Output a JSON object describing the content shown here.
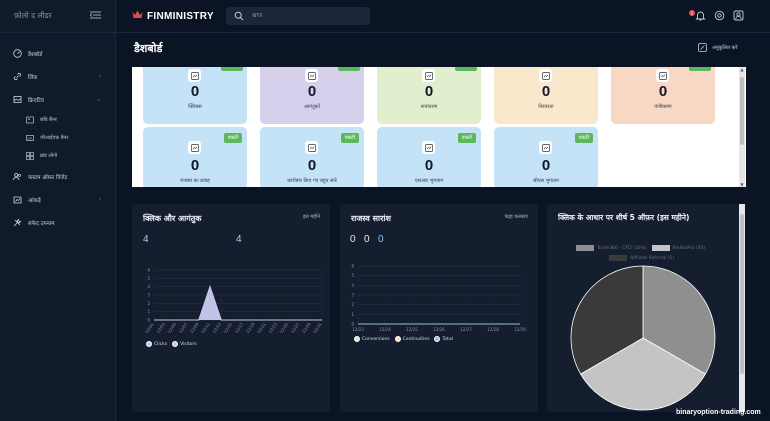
{
  "sidebar": {
    "title": "फ़ोलो द लीडर",
    "items": [
      {
        "label": "डैशबोर्ड",
        "icon": "dashboard-icon"
      },
      {
        "label": "लिंक",
        "icon": "link-icon",
        "chevron": "›"
      },
      {
        "label": "क्रिएटिव",
        "icon": "creative-icon",
        "chevron": "⌄"
      },
      {
        "label": "कस्टम ऑफ़र विजेट",
        "icon": "users-icon"
      },
      {
        "label": "आंकड़े",
        "icon": "stats-icon",
        "chevron": "›"
      },
      {
        "label": "सफेद उपनाम",
        "icon": "tools-icon"
      }
    ],
    "sub_items": [
      {
        "label": "छवि बैनर"
      },
      {
        "label": "जीआईएफ़ बैनर"
      },
      {
        "label": "ब्रांड लोगो"
      }
    ]
  },
  "topbar": {
    "brand": "FINMINISTRY",
    "search_placeholder": "खोज",
    "notification_count": "1"
  },
  "page": {
    "title": "डैशबोर्ड",
    "customize_label": "अनुकूलित करें"
  },
  "stats": [
    {
      "value": "0",
      "label": "क्लिक्स",
      "color": "#c5e3f7",
      "badge": ""
    },
    {
      "value": "0",
      "label": "आगंतुकों",
      "color": "#d7d0ec",
      "badge": ""
    },
    {
      "value": "0",
      "label": "रूपांतरण",
      "color": "#e2efcf",
      "badge": ""
    },
    {
      "value": "0",
      "label": "निरंतरता",
      "color": "#f9e8cb",
      "badge": ""
    },
    {
      "value": "0",
      "label": "पंजीकरण",
      "color": "#f8d7c4",
      "badge": ""
    },
    {
      "value": "0",
      "label": "राजस्व का प्रवाह",
      "color": "#c5e3f7",
      "badge": "एफ़टी"
    },
    {
      "value": "0",
      "label": "कारोबार किए गए बहुत सारे",
      "color": "#c5e3f7",
      "badge": "एफ़टी"
    },
    {
      "value": "0",
      "label": "एसआर भुगतान",
      "color": "#c5e3f7",
      "badge": "एफ़टी"
    },
    {
      "value": "0",
      "label": "सीएस भुगतान",
      "color": "#c5e3f7",
      "badge": "एफ़टी"
    }
  ],
  "clicks_panel": {
    "title": "क्लिक और आगंतुक",
    "period": "इस महीने",
    "clicks_total": "4",
    "visitors_total": "4"
  },
  "revenue_panel": {
    "title": "राजस्व सारांश",
    "period": "पंद्रह कलस्टर",
    "totals": [
      "0",
      "0",
      "0"
    ]
  },
  "offers_panel": {
    "title": "क्लिक के आधार पर शीर्ष 5 ऑफ़र (इस महीने)"
  },
  "watermark": "binaryoption-trading.com",
  "chart_data": [
    {
      "type": "line",
      "title": "क्लिक और आगंतुक",
      "x": [
        "12/01",
        "12/03",
        "12/05",
        "12/07",
        "12/09",
        "12/11",
        "12/13",
        "12/15",
        "12/17",
        "12/19",
        "12/21",
        "12/23",
        "12/25",
        "12/27",
        "12/29",
        "12/31"
      ],
      "series": [
        {
          "name": "Clicks",
          "values": [
            0,
            0,
            0,
            0,
            0,
            4,
            0,
            0,
            0,
            0,
            0,
            0,
            0,
            0,
            0,
            0
          ],
          "color": "#9fd3f7"
        },
        {
          "name": "Visitors",
          "values": [
            0,
            0,
            0,
            0,
            0,
            4,
            0,
            0,
            0,
            0,
            0,
            0,
            0,
            0,
            0,
            0
          ],
          "color": "#c9c3ea"
        }
      ],
      "ylim": [
        0,
        6
      ],
      "yticks": [
        "0",
        "1",
        "2",
        "3",
        "4",
        "5",
        "6"
      ]
    },
    {
      "type": "line",
      "title": "राजस्व सारांश",
      "x": [
        "12/23",
        "12/24",
        "12/25",
        "12/26",
        "12/27",
        "12/28",
        "12/29"
      ],
      "series": [
        {
          "name": "Conversions",
          "values": [
            0,
            0,
            0,
            0,
            0,
            0,
            0
          ],
          "color": "#d7efc2"
        },
        {
          "name": "Continuities",
          "values": [
            0,
            0,
            0,
            0,
            0,
            0,
            0
          ],
          "color": "#f9e2c0"
        },
        {
          "name": "Total",
          "values": [
            0,
            0,
            0,
            0,
            0,
            0,
            0
          ],
          "color": "#88c4f0"
        }
      ],
      "ylim": [
        0,
        6
      ],
      "yticks": [
        "0",
        "1",
        "2",
        "3",
        "4",
        "5",
        "6"
      ]
    },
    {
      "type": "pie",
      "title": "क्लिक के आधार पर शीर्ष 5 ऑफ़र (इस महीने)",
      "labels": [
        "Trade360 - CFD (10%)",
        "BinBotPro (40)",
        "Affiliate Referral (1)"
      ],
      "values": [
        1,
        1,
        1
      ],
      "colors": [
        "#8f8f8f",
        "#c4c4c4",
        "#3a3a3a"
      ]
    }
  ]
}
